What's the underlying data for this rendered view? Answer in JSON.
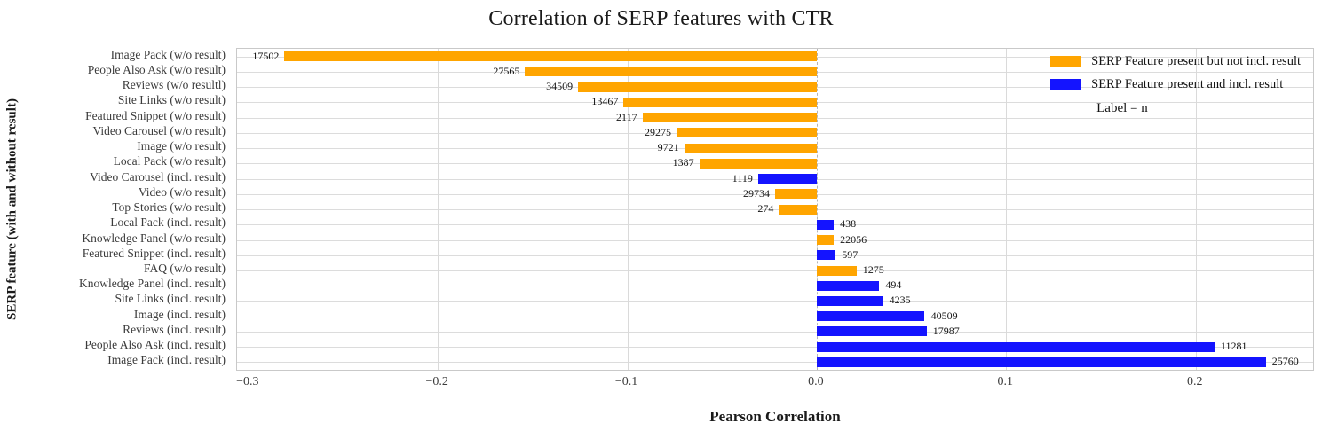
{
  "title": "Correlation of SERP features with CTR",
  "chart_data": {
    "type": "bar",
    "orientation": "horizontal",
    "title": "Correlation of SERP features with CTR",
    "xlabel": "Pearson Correlation",
    "ylabel": "SERP feature (with and without result)",
    "xlim": [
      -0.306,
      0.262
    ],
    "xticks": [
      -0.3,
      -0.2,
      -0.1,
      0.0,
      0.1,
      0.2
    ],
    "xtick_labels": [
      "−0.3",
      "−0.2",
      "−0.1",
      "0.0",
      "0.1",
      "0.2"
    ],
    "grid": true,
    "zero_line": "dashed",
    "colors": {
      "without": "#FFA500",
      "with": "#1414FF"
    },
    "legend": {
      "position": "top-right",
      "entries": [
        {
          "label": "SERP Feature present but not incl. result",
          "color": "#FFA500",
          "series": "without"
        },
        {
          "label": "SERP Feature present and incl. result",
          "color": "#1414FF",
          "series": "with"
        }
      ],
      "note": "Label = n"
    },
    "rows": [
      {
        "category": "Image Pack (w/o result)",
        "value": -0.281,
        "n": 17502,
        "series": "without"
      },
      {
        "category": "People Also Ask (w/o result)",
        "value": -0.154,
        "n": 27565,
        "series": "without"
      },
      {
        "category": "Reviews (w/o resultl)",
        "value": -0.126,
        "n": 34509,
        "series": "without"
      },
      {
        "category": "Site Links (w/o result)",
        "value": -0.102,
        "n": 13467,
        "series": "without"
      },
      {
        "category": "Featured Snippet (w/o result)",
        "value": -0.092,
        "n": 2117,
        "series": "without"
      },
      {
        "category": "Video Carousel (w/o result)",
        "value": -0.074,
        "n": 29275,
        "series": "without"
      },
      {
        "category": "Image (w/o result)",
        "value": -0.07,
        "n": 9721,
        "series": "without"
      },
      {
        "category": "Local Pack (w/o result)",
        "value": -0.062,
        "n": 1387,
        "series": "without"
      },
      {
        "category": "Video Carousel (incl. result)",
        "value": -0.031,
        "n": 1119,
        "series": "with"
      },
      {
        "category": "Video (w/o result)",
        "value": -0.022,
        "n": 29734,
        "series": "without"
      },
      {
        "category": "Top Stories (w/o result)",
        "value": -0.02,
        "n": 274,
        "series": "without"
      },
      {
        "category": "Local Pack (incl. result)",
        "value": 0.009,
        "n": 438,
        "series": "with"
      },
      {
        "category": "Knowledge Panel (w/o result)",
        "value": 0.009,
        "n": 22056,
        "series": "without"
      },
      {
        "category": "Featured Snippet (incl. result)",
        "value": 0.01,
        "n": 597,
        "series": "with"
      },
      {
        "category": "FAQ (w/o result)",
        "value": 0.021,
        "n": 1275,
        "series": "without"
      },
      {
        "category": "Knowledge Panel (incl. result)",
        "value": 0.033,
        "n": 494,
        "series": "with"
      },
      {
        "category": "Site Links (incl. result)",
        "value": 0.035,
        "n": 4235,
        "series": "with"
      },
      {
        "category": "Image (incl. result)",
        "value": 0.057,
        "n": 40509,
        "series": "with"
      },
      {
        "category": "Reviews (incl. result)",
        "value": 0.058,
        "n": 17987,
        "series": "with"
      },
      {
        "category": "People Also Ask (incl. result)",
        "value": 0.21,
        "n": 11281,
        "series": "with"
      },
      {
        "category": "Image Pack (incl. result)",
        "value": 0.237,
        "n": 25760,
        "series": "with"
      }
    ]
  }
}
